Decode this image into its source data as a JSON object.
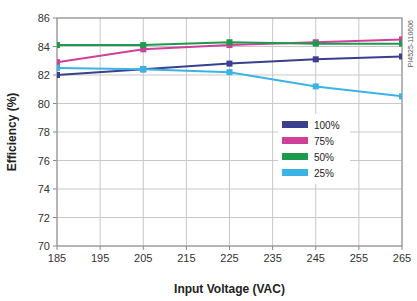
{
  "chart_data": {
    "type": "line",
    "x_label": "Input Voltage (VAC)",
    "y_label": "Efficiency (%)",
    "annotation": "PI4525-110606",
    "x": [
      185,
      205,
      225,
      245,
      265
    ],
    "series": [
      {
        "name": "100%",
        "color": "#3b3f8f",
        "marker": "square",
        "values": [
          82.0,
          82.4,
          82.8,
          83.1,
          83.3
        ]
      },
      {
        "name": "75%",
        "color": "#d0409a",
        "marker": "square",
        "values": [
          82.9,
          83.8,
          84.1,
          84.3,
          84.5
        ]
      },
      {
        "name": "50%",
        "color": "#1e9a4c",
        "marker": "square",
        "values": [
          84.1,
          84.1,
          84.3,
          84.2,
          84.2
        ]
      },
      {
        "name": "25%",
        "color": "#3ab4e6",
        "marker": "square",
        "values": [
          82.5,
          82.4,
          82.2,
          81.2,
          80.5
        ]
      }
    ],
    "xlim": [
      185,
      265
    ],
    "xticks": [
      185,
      195,
      205,
      215,
      225,
      235,
      245,
      255,
      265
    ],
    "ylim": [
      70,
      86
    ],
    "yticks": [
      70,
      72,
      74,
      76,
      78,
      80,
      82,
      84,
      86
    ],
    "grid": true,
    "legend": "right"
  }
}
